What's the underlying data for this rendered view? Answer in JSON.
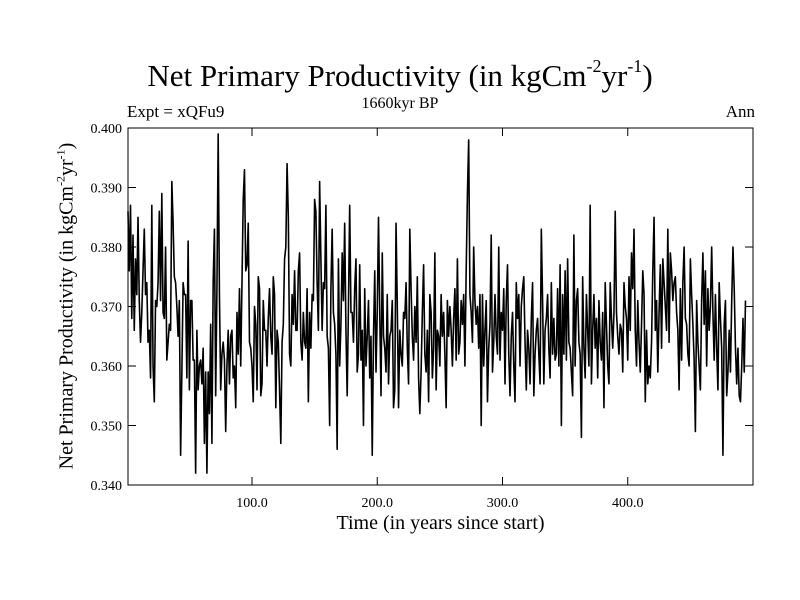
{
  "chart_data": {
    "type": "line",
    "title": "Net Primary Productivity (in kgCm",
    "title_unit_exp1": "-2",
    "title_unit_mid": "yr",
    "title_unit_exp2": "-1",
    "title_close": ")",
    "expt_label": "Expt = xQFu9",
    "subtitle": "1660kyr BP",
    "season_label": "Ann",
    "xlabel": "Time (in years since start)",
    "ylabel": "Net Primary Productivity (in kgCm",
    "ylabel_exp1": "-2",
    "ylabel_mid": "yr",
    "ylabel_exp2": "-1",
    "ylabel_close": ")",
    "xlim": [
      1,
      500
    ],
    "ylim": [
      0.34,
      0.4
    ],
    "xticks": [
      100,
      200,
      300,
      400
    ],
    "xtick_labels": [
      "100.0",
      "200.0",
      "300.0",
      "400.0"
    ],
    "yticks": [
      0.34,
      0.35,
      0.36,
      0.37,
      0.38,
      0.39,
      0.4
    ],
    "ytick_labels": [
      "0.340",
      "0.350",
      "0.360",
      "0.370",
      "0.380",
      "0.390",
      "0.400"
    ],
    "grid": false,
    "series": [
      {
        "name": "Net Primary Productivity",
        "x_start": 1,
        "x_step": 1,
        "values": [
          0.386,
          0.376,
          0.387,
          0.368,
          0.382,
          0.366,
          0.378,
          0.372,
          0.385,
          0.371,
          0.364,
          0.369,
          0.376,
          0.383,
          0.372,
          0.374,
          0.364,
          0.366,
          0.358,
          0.387,
          0.36,
          0.354,
          0.371,
          0.37,
          0.374,
          0.386,
          0.371,
          0.389,
          0.369,
          0.368,
          0.38,
          0.361,
          0.364,
          0.367,
          0.366,
          0.391,
          0.384,
          0.375,
          0.374,
          0.37,
          0.365,
          0.371,
          0.345,
          0.359,
          0.374,
          0.372,
          0.372,
          0.358,
          0.381,
          0.356,
          0.371,
          0.371,
          0.361,
          0.361,
          0.342,
          0.366,
          0.356,
          0.36,
          0.361,
          0.357,
          0.363,
          0.347,
          0.359,
          0.342,
          0.359,
          0.352,
          0.367,
          0.347,
          0.374,
          0.383,
          0.355,
          0.373,
          0.399,
          0.372,
          0.356,
          0.362,
          0.364,
          0.361,
          0.349,
          0.36,
          0.366,
          0.357,
          0.365,
          0.366,
          0.358,
          0.36,
          0.353,
          0.369,
          0.362,
          0.373,
          0.36,
          0.374,
          0.388,
          0.393,
          0.376,
          0.377,
          0.384,
          0.364,
          0.363,
          0.36,
          0.354,
          0.37,
          0.367,
          0.356,
          0.375,
          0.373,
          0.355,
          0.357,
          0.371,
          0.366,
          0.366,
          0.36,
          0.368,
          0.373,
          0.365,
          0.362,
          0.375,
          0.372,
          0.353,
          0.366,
          0.364,
          0.356,
          0.347,
          0.364,
          0.367,
          0.378,
          0.38,
          0.394,
          0.385,
          0.362,
          0.36,
          0.372,
          0.367,
          0.376,
          0.366,
          0.366,
          0.376,
          0.379,
          0.364,
          0.361,
          0.369,
          0.364,
          0.363,
          0.373,
          0.354,
          0.369,
          0.363,
          0.372,
          0.371,
          0.388,
          0.386,
          0.374,
          0.366,
          0.391,
          0.378,
          0.366,
          0.374,
          0.373,
          0.387,
          0.365,
          0.363,
          0.35,
          0.373,
          0.383,
          0.369,
          0.367,
          0.362,
          0.346,
          0.378,
          0.36,
          0.367,
          0.379,
          0.371,
          0.384,
          0.366,
          0.355,
          0.37,
          0.387,
          0.369,
          0.369,
          0.364,
          0.373,
          0.378,
          0.359,
          0.362,
          0.377,
          0.361,
          0.366,
          0.35,
          0.373,
          0.36,
          0.365,
          0.371,
          0.358,
          0.365,
          0.345,
          0.365,
          0.376,
          0.359,
          0.369,
          0.385,
          0.369,
          0.355,
          0.379,
          0.365,
          0.363,
          0.359,
          0.372,
          0.357,
          0.365,
          0.366,
          0.371,
          0.353,
          0.356,
          0.384,
          0.37,
          0.353,
          0.366,
          0.362,
          0.36,
          0.369,
          0.368,
          0.374,
          0.363,
          0.357,
          0.383,
          0.373,
          0.365,
          0.361,
          0.37,
          0.364,
          0.375,
          0.358,
          0.352,
          0.359,
          0.369,
          0.377,
          0.362,
          0.359,
          0.366,
          0.354,
          0.372,
          0.369,
          0.358,
          0.363,
          0.379,
          0.356,
          0.366,
          0.365,
          0.36,
          0.372,
          0.365,
          0.369,
          0.362,
          0.353,
          0.371,
          0.365,
          0.37,
          0.366,
          0.36,
          0.368,
          0.373,
          0.361,
          0.378,
          0.362,
          0.364,
          0.371,
          0.367,
          0.372,
          0.36,
          0.376,
          0.389,
          0.398,
          0.372,
          0.369,
          0.364,
          0.38,
          0.371,
          0.367,
          0.37,
          0.363,
          0.372,
          0.35,
          0.372,
          0.36,
          0.366,
          0.371,
          0.354,
          0.363,
          0.367,
          0.382,
          0.359,
          0.364,
          0.372,
          0.365,
          0.362,
          0.38,
          0.361,
          0.369,
          0.366,
          0.373,
          0.357,
          0.371,
          0.377,
          0.362,
          0.355,
          0.365,
          0.369,
          0.36,
          0.354,
          0.374,
          0.368,
          0.372,
          0.36,
          0.37,
          0.373,
          0.375,
          0.364,
          0.356,
          0.366,
          0.363,
          0.357,
          0.368,
          0.374,
          0.355,
          0.362,
          0.366,
          0.368,
          0.362,
          0.357,
          0.383,
          0.371,
          0.357,
          0.366,
          0.368,
          0.372,
          0.363,
          0.358,
          0.374,
          0.362,
          0.368,
          0.361,
          0.362,
          0.373,
          0.36,
          0.377,
          0.35,
          0.372,
          0.362,
          0.376,
          0.361,
          0.378,
          0.364,
          0.363,
          0.359,
          0.355,
          0.382,
          0.36,
          0.371,
          0.373,
          0.364,
          0.362,
          0.348,
          0.375,
          0.363,
          0.358,
          0.372,
          0.366,
          0.36,
          0.387,
          0.357,
          0.366,
          0.372,
          0.363,
          0.368,
          0.358,
          0.371,
          0.364,
          0.361,
          0.369,
          0.353,
          0.374,
          0.367,
          0.36,
          0.357,
          0.374,
          0.368,
          0.363,
          0.369,
          0.386,
          0.369,
          0.365,
          0.362,
          0.367,
          0.366,
          0.359,
          0.374,
          0.37,
          0.368,
          0.361,
          0.375,
          0.366,
          0.379,
          0.373,
          0.383,
          0.366,
          0.36,
          0.371,
          0.364,
          0.359,
          0.367,
          0.376,
          0.372,
          0.354,
          0.366,
          0.357,
          0.36,
          0.358,
          0.364,
          0.376,
          0.385,
          0.366,
          0.371,
          0.359,
          0.369,
          0.377,
          0.363,
          0.378,
          0.374,
          0.37,
          0.366,
          0.383,
          0.364,
          0.379,
          0.376,
          0.371,
          0.374,
          0.375,
          0.369,
          0.366,
          0.356,
          0.373,
          0.361,
          0.374,
          0.38,
          0.368,
          0.367,
          0.362,
          0.36,
          0.378,
          0.372,
          0.367,
          0.361,
          0.349,
          0.371,
          0.364,
          0.36,
          0.356,
          0.371,
          0.379,
          0.367,
          0.376,
          0.36,
          0.373,
          0.366,
          0.37,
          0.38,
          0.369,
          0.361,
          0.372,
          0.363,
          0.356,
          0.374,
          0.368,
          0.363,
          0.345,
          0.367,
          0.371,
          0.355,
          0.359,
          0.366,
          0.359,
          0.371,
          0.38,
          0.373,
          0.363,
          0.357,
          0.363,
          0.355,
          0.354,
          0.36,
          0.368,
          0.359,
          0.371
        ]
      }
    ]
  }
}
